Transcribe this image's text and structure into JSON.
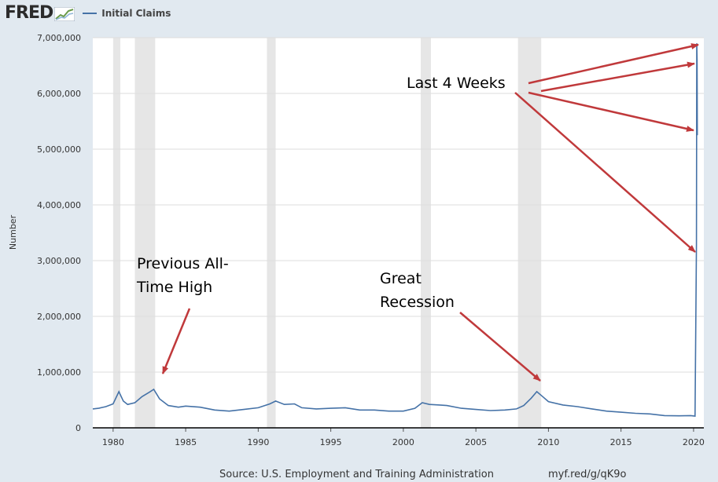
{
  "header": {
    "logo_text": "FRED",
    "legend_label": "Initial Claims"
  },
  "colors": {
    "line": "#4572a7",
    "recession": "#e6e6e6",
    "arrow": "#c0393b",
    "plot_bg": "#ffffff"
  },
  "footer": {
    "source": "Source: U.S. Employment and Training Administration",
    "link": "myf.red/g/qK9o"
  },
  "chart_data": {
    "type": "line",
    "title": "",
    "xlabel": "",
    "ylabel": "Number",
    "xlim": [
      1978.6,
      2020.6
    ],
    "ylim": [
      0,
      7000000
    ],
    "y_ticks": [
      0,
      1000000,
      2000000,
      3000000,
      4000000,
      5000000,
      6000000,
      7000000
    ],
    "y_tick_labels": [
      "0",
      "1,000,000",
      "2,000,000",
      "3,000,000",
      "4,000,000",
      "5,000,000",
      "6,000,000",
      "7,000,000"
    ],
    "x_ticks": [
      1980,
      1985,
      1990,
      1995,
      2000,
      2005,
      2010,
      2015,
      2020
    ],
    "x_tick_labels": [
      "1980",
      "1985",
      "1990",
      "1995",
      "2000",
      "2005",
      "2010",
      "2015",
      "2020"
    ],
    "grid": "horizontal",
    "legend": "top-left",
    "recessions": [
      [
        1980.0,
        1980.5
      ],
      [
        1981.5,
        1982.9
      ],
      [
        1990.6,
        1991.2
      ],
      [
        2001.2,
        2001.9
      ],
      [
        2007.9,
        2009.5
      ]
    ],
    "series": [
      {
        "name": "Initial Claims",
        "x": [
          1978.6,
          1979.0,
          1979.5,
          1980.0,
          1980.4,
          1980.7,
          1981.0,
          1981.5,
          1982.0,
          1982.5,
          1982.8,
          1983.2,
          1983.8,
          1984.5,
          1985.0,
          1986.0,
          1987.0,
          1988.0,
          1989.0,
          1990.0,
          1990.8,
          1991.2,
          1991.8,
          1992.5,
          1993.0,
          1994.0,
          1995.0,
          1996.0,
          1997.0,
          1998.0,
          1999.0,
          2000.0,
          2000.8,
          2001.3,
          2001.8,
          2002.5,
          2003.0,
          2004.0,
          2005.0,
          2006.0,
          2007.0,
          2007.8,
          2008.3,
          2008.8,
          2009.2,
          2009.6,
          2010.0,
          2011.0,
          2012.0,
          2013.0,
          2014.0,
          2015.0,
          2016.0,
          2017.0,
          2018.0,
          2019.0,
          2019.8,
          2020.1,
          2020.2,
          2020.22,
          2020.24,
          2020.26
        ],
        "values": [
          340000,
          350000,
          380000,
          430000,
          650000,
          480000,
          420000,
          450000,
          560000,
          640000,
          690000,
          520000,
          400000,
          370000,
          390000,
          370000,
          320000,
          300000,
          330000,
          360000,
          430000,
          480000,
          420000,
          430000,
          360000,
          340000,
          350000,
          360000,
          320000,
          320000,
          300000,
          300000,
          350000,
          450000,
          420000,
          410000,
          400000,
          350000,
          330000,
          310000,
          320000,
          340000,
          400000,
          530000,
          650000,
          560000,
          470000,
          410000,
          380000,
          340000,
          300000,
          280000,
          260000,
          250000,
          220000,
          215000,
          220000,
          210000,
          3300000,
          6900000,
          6600000,
          5250000
        ]
      }
    ],
    "annotations": [
      "Previous All-Time High",
      "Great Recession",
      "Last 4 Weeks"
    ]
  }
}
